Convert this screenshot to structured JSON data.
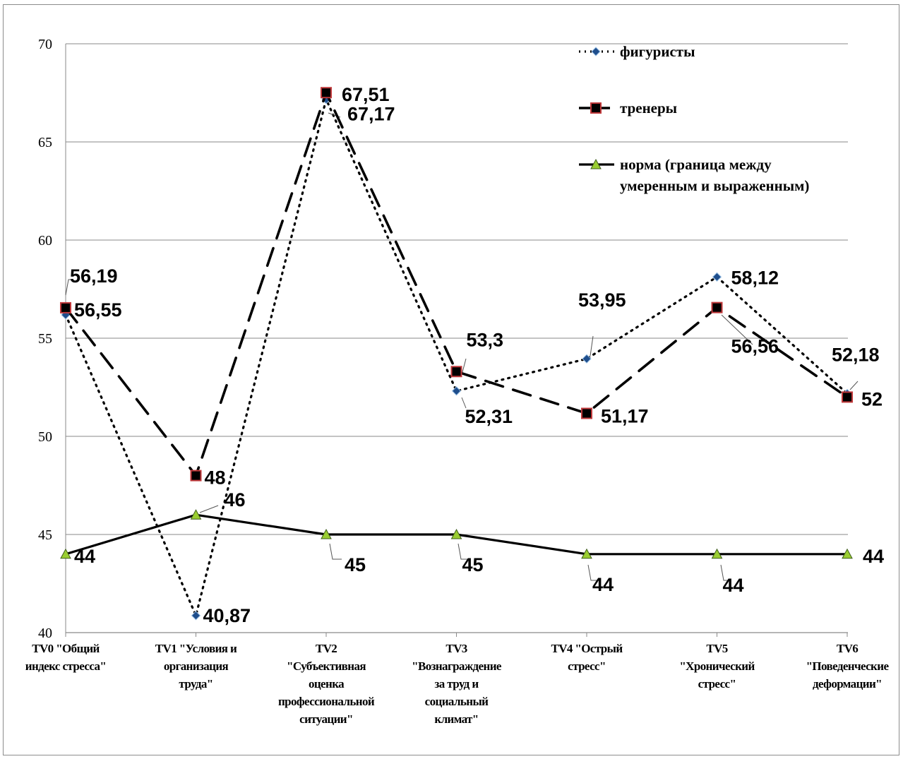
{
  "chart_data": {
    "type": "line",
    "categories": [
      [
        "TV0 \"Общий",
        "индекс стресса\""
      ],
      [
        "TV1 \"Условия и",
        "организация",
        "труда\""
      ],
      [
        "TV2",
        "\"Субъективная",
        "оценка",
        "профессиональной",
        "ситуации\""
      ],
      [
        "TV3",
        "\"Вознаграждение",
        "за труд и",
        "социальный",
        "климат\""
      ],
      [
        "TV4 \"Острый",
        "стресс\""
      ],
      [
        "TV5",
        "\"Хронический",
        "стресс\""
      ],
      [
        "TV6",
        "\"Поведенческие",
        "деформации\""
      ]
    ],
    "ylim": [
      40,
      70
    ],
    "yticks": [
      "40",
      "45",
      "50",
      "55",
      "60",
      "65",
      "70"
    ],
    "grid": true,
    "legend_position": "top-right",
    "series": [
      {
        "name": "фигуристы",
        "values": [
          56.19,
          40.87,
          67.17,
          52.31,
          53.95,
          58.12,
          52.18
        ],
        "labels": [
          "56,19",
          "40,87",
          "67,17",
          "52,31",
          "53,95",
          "58,12",
          "52,18"
        ],
        "color": "#000000",
        "marker_color": "#1f4e8c",
        "line_style": "dotted",
        "marker": "diamond"
      },
      {
        "name": "тренеры",
        "values": [
          56.55,
          48,
          67.51,
          53.3,
          51.17,
          56.56,
          52
        ],
        "labels": [
          "56,55",
          "48",
          "67,51",
          "53,3",
          "51,17",
          "56,56",
          "52"
        ],
        "color": "#000000",
        "marker_color": "#c0393b",
        "line_style": "dashed",
        "marker": "square"
      },
      {
        "name_lines": [
          "норма (граница  между",
          "умеренным и выраженным)"
        ],
        "values": [
          44,
          46,
          45,
          45,
          44,
          44,
          44
        ],
        "labels": [
          "44",
          "46",
          "45",
          "45",
          "44",
          "44",
          "44"
        ],
        "color": "#000000",
        "marker_color": "#9acd32",
        "line_style": "solid",
        "marker": "triangle"
      }
    ]
  }
}
